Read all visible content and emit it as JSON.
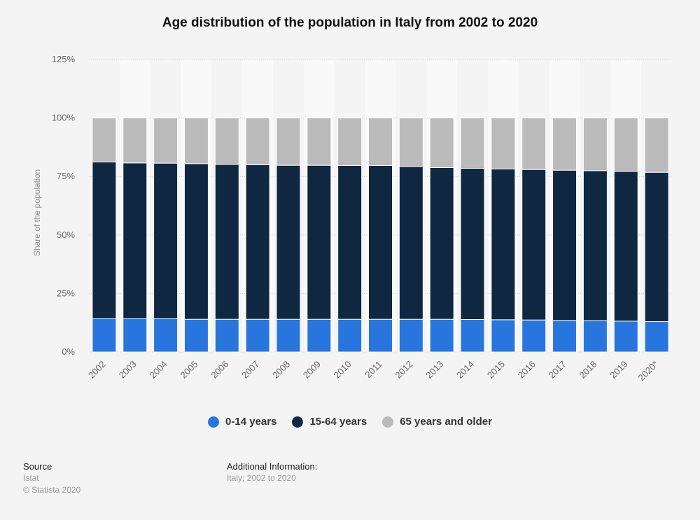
{
  "title": "Age distribution of the population in Italy from 2002 to 2020",
  "colors": {
    "age_0_14": "#2876dd",
    "age_15_64": "#0f2740",
    "age_65_plus": "#bababa",
    "background": "#f4f4f4"
  },
  "footer": {
    "source_heading": "Source",
    "source_name": "Istat",
    "copyright": "© Statista 2020",
    "additional_heading": "Additional Information:",
    "additional_text": "Italy; 2002 to 2020"
  },
  "chart_data": {
    "type": "bar",
    "stacked": true,
    "categories": [
      "2002",
      "2003",
      "2004",
      "2005",
      "2006",
      "2007",
      "2008",
      "2009",
      "2010",
      "2011",
      "2012",
      "2013",
      "2014",
      "2015",
      "2016",
      "2017",
      "2018",
      "2019",
      "2020*"
    ],
    "series": [
      {
        "name": "0-14 years",
        "values": [
          14.2,
          14.2,
          14.2,
          14.0,
          14.0,
          14.0,
          14.0,
          14.0,
          14.0,
          14.0,
          14.0,
          14.0,
          13.9,
          13.8,
          13.7,
          13.5,
          13.4,
          13.2,
          13.0
        ]
      },
      {
        "name": "15-64 years",
        "values": [
          67.0,
          66.6,
          66.5,
          66.5,
          66.2,
          66.0,
          65.8,
          65.8,
          65.7,
          65.7,
          65.3,
          64.8,
          64.6,
          64.4,
          64.3,
          64.2,
          64.1,
          64.0,
          63.8
        ]
      },
      {
        "name": "65 years and older",
        "values": [
          18.8,
          19.2,
          19.3,
          19.5,
          19.8,
          20.0,
          20.2,
          20.2,
          20.3,
          20.3,
          20.7,
          21.2,
          21.5,
          21.8,
          22.0,
          22.3,
          22.5,
          22.8,
          23.2
        ]
      }
    ],
    "ylabel": "Share of the population",
    "xlabel": "",
    "ylim": [
      0,
      125
    ],
    "yticks": [
      "0%",
      "25%",
      "50%",
      "75%",
      "100%",
      "125%"
    ],
    "grid": true,
    "legend_position": "bottom"
  }
}
